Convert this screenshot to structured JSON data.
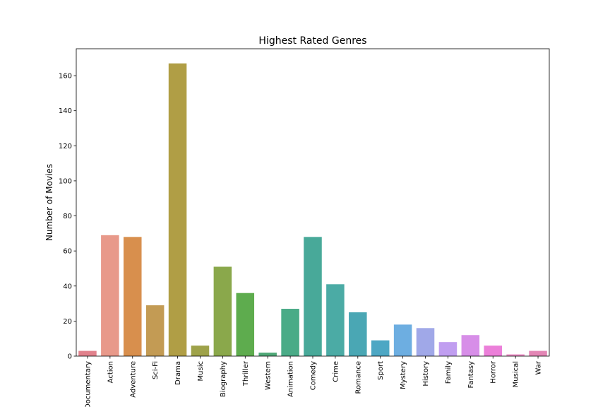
{
  "chart_data": {
    "type": "bar",
    "title": "Highest Rated Genres",
    "xlabel": "",
    "ylabel": "Number of Movies",
    "categories": [
      "Documentary",
      "Action",
      "Adventure",
      "Sci-Fi",
      "Drama",
      "Music",
      "Biography",
      "Thriller",
      "Western",
      "Animation",
      "Comedy",
      "Crime",
      "Romance",
      "Sport",
      "Mystery",
      "History",
      "Family",
      "Fantasy",
      "Horror",
      "Musical",
      "War"
    ],
    "values": [
      3,
      69,
      68,
      29,
      167,
      6,
      51,
      36,
      2,
      27,
      68,
      41,
      25,
      9,
      18,
      16,
      8,
      12,
      6,
      1,
      3
    ],
    "colors": [
      "#e1818c",
      "#e8998a",
      "#d88f4d",
      "#c39b54",
      "#b09e45",
      "#9ea249",
      "#8aa84b",
      "#5eac4e",
      "#50a878",
      "#4aab87",
      "#48a999",
      "#4baba5",
      "#4aa7b4",
      "#4da7c4",
      "#6daee1",
      "#a0a8e8",
      "#c09ef0",
      "#d78ee8",
      "#eb7fd9",
      "#ec8bc4",
      "#e386b5"
    ],
    "yticks": [
      0,
      20,
      40,
      60,
      80,
      100,
      120,
      140,
      160
    ],
    "ylim": [
      0,
      175.35
    ],
    "grid": false,
    "legend": "none"
  }
}
